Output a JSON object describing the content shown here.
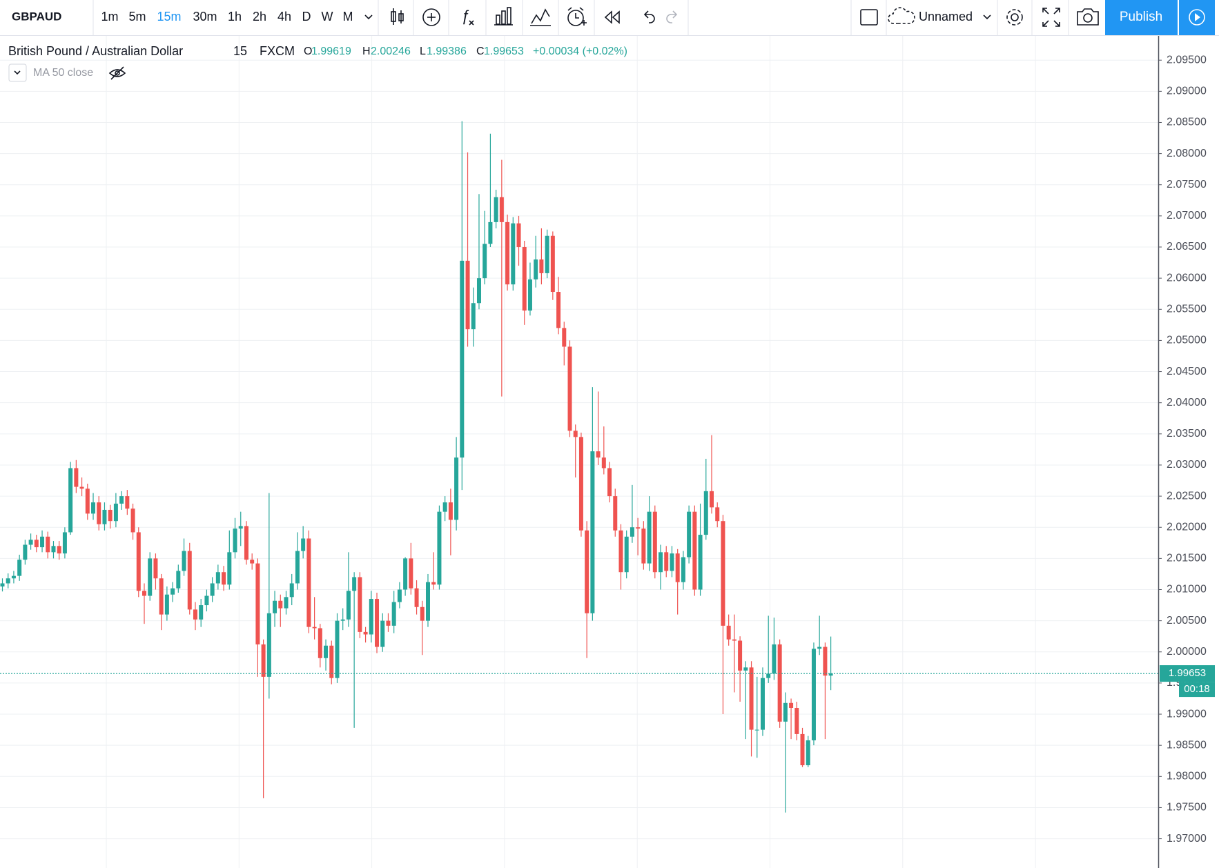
{
  "toolbar": {
    "symbol": "GBPAUD",
    "intervals": [
      "1m",
      "5m",
      "15m",
      "30m",
      "1h",
      "2h",
      "4h",
      "D",
      "W",
      "M"
    ],
    "active_interval": 2,
    "layout_name": "Unnamed",
    "publish": "Publish"
  },
  "chart_data": {
    "type": "candlestick",
    "title": "British Pound / Australian Dollar",
    "interval": "15",
    "source": "FXCM",
    "legend": {
      "open_letter": "O",
      "high_letter": "H",
      "low_letter": "L",
      "close_letter": "C",
      "change": "+0.00034 (+0.02%)"
    },
    "indicator": "MA 50 close",
    "countdown": "00:18",
    "up_color": "#26a69a",
    "down_color": "#ef5350",
    "grid": true,
    "ylim": [
      1.9653,
      2.0989
    ],
    "yticks": [
      {
        "value": 2.095,
        "label": "2.09500"
      },
      {
        "value": 2.09,
        "label": "2.09000"
      },
      {
        "value": 2.085,
        "label": "2.08500"
      },
      {
        "value": 2.08,
        "label": "2.08000"
      },
      {
        "value": 2.075,
        "label": "2.07500"
      },
      {
        "value": 2.07,
        "label": "2.07000"
      },
      {
        "value": 2.065,
        "label": "2.06500"
      },
      {
        "value": 2.06,
        "label": "2.06000"
      },
      {
        "value": 2.055,
        "label": "2.05500"
      },
      {
        "value": 2.05,
        "label": "2.05000"
      },
      {
        "value": 2.045,
        "label": "2.04500"
      },
      {
        "value": 2.04,
        "label": "2.04000"
      },
      {
        "value": 2.035,
        "label": "2.03500"
      },
      {
        "value": 2.03,
        "label": "2.03000"
      },
      {
        "value": 2.025,
        "label": "2.02500"
      },
      {
        "value": 2.02,
        "label": "2.02000"
      },
      {
        "value": 2.015,
        "label": "2.01500"
      },
      {
        "value": 2.01,
        "label": "2.01000"
      },
      {
        "value": 2.005,
        "label": "2.00500"
      },
      {
        "value": 2.0,
        "label": "2.00000"
      },
      {
        "value": 1.995,
        "label": "1.99500"
      },
      {
        "value": 1.99,
        "label": "1.99000"
      },
      {
        "value": 1.985,
        "label": "1.98500"
      },
      {
        "value": 1.98,
        "label": "1.98000"
      },
      {
        "value": 1.975,
        "label": "1.97500"
      },
      {
        "value": 1.97,
        "label": "1.97000"
      }
    ],
    "open": [
      2.0105,
      2.011,
      2.0118,
      2.0122,
      2.0148,
      2.0172,
      2.018,
      2.0168,
      2.0185,
      2.016,
      2.017,
      2.0158,
      2.0192,
      2.0295,
      2.0265,
      2.0262,
      2.0222,
      2.024,
      2.0205,
      2.0228,
      2.021,
      2.0238,
      2.025,
      2.023,
      2.0192,
      2.0098,
      2.009,
      2.015,
      2.0118,
      2.006,
      2.0092,
      2.0102,
      2.013,
      2.0162,
      2.0068,
      2.0052,
      2.0075,
      2.009,
      2.011,
      2.0128,
      2.0108,
      2.016,
      2.0198,
      2.0202,
      2.0148,
      2.0142,
      2.0012,
      1.996,
      2.0062,
      2.0082,
      2.007,
      2.0088,
      2.011,
      2.0162,
      2.0182,
      2.004,
      2.0038,
      1.999,
      2.001,
      1.9958,
      2.005,
      2.0052,
      2.0098,
      2.012,
      2.0032,
      2.0028,
      2.0085,
      2.0008,
      2.005,
      2.0042,
      2.008,
      2.01,
      2.015,
      2.0102,
      2.0072,
      2.005,
      2.0112,
      2.0108,
      2.0225,
      2.024,
      2.0212,
      2.0312,
      2.0628,
      2.0518,
      2.056,
      2.06,
      2.0655,
      2.069,
      2.073,
      2.069,
      2.059,
      2.0688,
      2.065,
      2.0548,
      2.0598,
      2.063,
      2.0608,
      2.0668,
      2.0578,
      2.052,
      2.049,
      2.0355,
      2.0345,
      2.0195,
      2.0062,
      2.0322,
      2.0312,
      2.0295,
      2.025,
      2.0195,
      2.0128,
      2.0185,
      2.02,
      2.0198,
      2.0142,
      2.0225,
      2.0128,
      2.016,
      2.013,
      2.0158,
      2.0112,
      2.0152,
      2.0225,
      2.01,
      2.0188,
      2.0258,
      2.0232,
      2.021,
      2.0042,
      2.002,
      2.0018,
      1.997,
      1.9975,
      1.9875,
      1.9875,
      1.9958,
      1.9965,
      2.0012,
      1.9888,
      1.9918,
      1.991,
      1.9868,
      1.9818,
      1.9858,
      2.0005,
      2.0008,
      1.99619
    ],
    "high": [
      2.0118,
      2.0126,
      2.013,
      2.0156,
      2.018,
      2.019,
      2.0188,
      2.0195,
      2.0193,
      2.0178,
      2.0178,
      2.02,
      2.0305,
      2.0308,
      2.028,
      2.027,
      2.0255,
      2.025,
      2.024,
      2.0236,
      2.0255,
      2.0258,
      2.026,
      2.0238,
      2.02,
      2.011,
      2.016,
      2.0158,
      2.0125,
      2.0105,
      2.0112,
      2.014,
      2.0182,
      2.0175,
      2.008,
      2.0085,
      2.01,
      2.012,
      2.014,
      2.0138,
      2.0195,
      2.0215,
      2.0225,
      2.021,
      2.0158,
      2.015,
      2.002,
      2.0255,
      2.0098,
      2.0092,
      2.0098,
      2.0125,
      2.0192,
      2.0202,
      2.0195,
      2.0088,
      2.0045,
      2.002,
      2.0018,
      2.0062,
      2.007,
      2.016,
      2.0128,
      2.0128,
      2.004,
      2.0098,
      2.0095,
      2.0062,
      2.0062,
      2.0098,
      2.0112,
      2.0152,
      2.0175,
      2.0115,
      2.0082,
      2.0125,
      2.016,
      2.0235,
      2.025,
      2.0262,
      2.0345,
      2.0852,
      2.0802,
      2.0585,
      2.0735,
      2.0708,
      2.0832,
      2.0742,
      2.079,
      2.0702,
      2.0698,
      2.07,
      2.066,
      2.0625,
      2.0668,
      2.068,
      2.0678,
      2.0675,
      2.0602,
      2.053,
      2.05,
      2.0365,
      2.0352,
      2.021,
      2.0425,
      2.0418,
      2.0362,
      2.0305,
      2.0262,
      2.0205,
      2.0195,
      2.0268,
      2.0215,
      2.021,
      2.025,
      2.0235,
      2.0172,
      2.017,
      2.017,
      2.0165,
      2.0162,
      2.0235,
      2.0235,
      2.0238,
      2.031,
      2.0348,
      2.024,
      2.022,
      2.006,
      2.006,
      2.0025,
      1.9985,
      1.9985,
      1.996,
      1.9975,
      2.0058,
      2.0055,
      2.002,
      1.9935,
      1.9925,
      1.992,
      1.9878,
      1.9865,
      2.0015,
      2.0058,
      2.0015,
      2.00246
    ],
    "low": [
      2.0097,
      2.0102,
      2.011,
      2.0114,
      2.014,
      2.0164,
      2.016,
      2.016,
      2.015,
      2.015,
      2.0148,
      2.015,
      2.0188,
      2.0255,
      2.025,
      2.0212,
      2.0212,
      2.0195,
      2.0195,
      2.0198,
      2.02,
      2.0228,
      2.022,
      2.018,
      2.0088,
      2.0045,
      2.0082,
      2.01,
      2.0035,
      2.005,
      2.008,
      2.0095,
      2.0122,
      2.006,
      2.0035,
      2.004,
      2.0065,
      2.008,
      2.01,
      2.0098,
      2.01,
      2.015,
      2.017,
      2.014,
      2.0132,
      1.996,
      1.9765,
      1.9925,
      2.004,
      2.004,
      2.006,
      2.0075,
      2.01,
      2.015,
      2.003,
      2.002,
      1.9975,
      1.997,
      1.9948,
      1.995,
      2.0035,
      2.004,
      1.9878,
      2.0022,
      2.0015,
      2.0015,
      1.9998,
      2.0,
      2.0032,
      2.003,
      2.007,
      2.009,
      2.0092,
      2.006,
      1.9995,
      2.004,
      2.01,
      2.01,
      2.021,
      2.0155,
      2.0195,
      2.026,
      2.049,
      2.049,
      2.055,
      2.059,
      2.065,
      2.068,
      2.041,
      2.058,
      2.058,
      2.062,
      2.0525,
      2.054,
      2.0585,
      2.059,
      2.06,
      2.0565,
      2.051,
      2.046,
      2.0345,
      2.028,
      2.0185,
      1.999,
      2.005,
      2.03,
      2.0285,
      2.024,
      2.0185,
      2.01,
      2.0118,
      2.0175,
      2.0155,
      2.0132,
      2.013,
      2.0118,
      2.01,
      2.012,
      2.012,
      2.006,
      2.01,
      2.0142,
      2.009,
      2.009,
      2.018,
      2.0222,
      2.02,
      1.99,
      2.001,
      1.9935,
      1.992,
      1.986,
      1.9832,
      1.983,
      1.9865,
      1.995,
      1.9955,
      1.9878,
      1.9742,
      1.986,
      1.9858,
      1.9815,
      1.9815,
      1.985,
      1.9995,
      1.986,
      1.99386
    ],
    "close": [
      2.011,
      2.0118,
      2.0122,
      2.0148,
      2.0172,
      2.018,
      2.0168,
      2.0185,
      2.016,
      2.017,
      2.0158,
      2.0192,
      2.0295,
      2.0265,
      2.0262,
      2.0222,
      2.024,
      2.0205,
      2.0228,
      2.021,
      2.0238,
      2.025,
      2.023,
      2.0192,
      2.0098,
      2.009,
      2.015,
      2.0118,
      2.006,
      2.0092,
      2.0102,
      2.013,
      2.0162,
      2.0068,
      2.0052,
      2.0075,
      2.009,
      2.011,
      2.0128,
      2.0108,
      2.016,
      2.0198,
      2.0202,
      2.0148,
      2.0142,
      2.0012,
      1.996,
      2.0062,
      2.0082,
      2.007,
      2.0088,
      2.011,
      2.0162,
      2.0182,
      2.004,
      2.0038,
      1.999,
      2.001,
      1.9958,
      2.005,
      2.0052,
      2.0098,
      2.012,
      2.0032,
      2.0028,
      2.0085,
      2.0008,
      2.005,
      2.0042,
      2.008,
      2.01,
      2.015,
      2.0102,
      2.0072,
      2.005,
      2.0112,
      2.0108,
      2.0225,
      2.024,
      2.0212,
      2.0312,
      2.0628,
      2.0518,
      2.056,
      2.06,
      2.0655,
      2.069,
      2.073,
      2.069,
      2.059,
      2.0688,
      2.065,
      2.0548,
      2.0598,
      2.063,
      2.0608,
      2.0668,
      2.0578,
      2.052,
      2.049,
      2.0355,
      2.0345,
      2.0195,
      2.0062,
      2.0322,
      2.0312,
      2.0295,
      2.025,
      2.0195,
      2.0128,
      2.0185,
      2.02,
      2.0198,
      2.0142,
      2.0225,
      2.0128,
      2.016,
      2.013,
      2.0158,
      2.0112,
      2.0152,
      2.0225,
      2.01,
      2.0188,
      2.0258,
      2.0232,
      2.021,
      2.0042,
      2.002,
      2.0018,
      1.997,
      1.9975,
      1.9875,
      1.9875,
      1.9958,
      1.9965,
      2.0012,
      1.9888,
      1.9918,
      1.991,
      1.9868,
      1.9818,
      1.9858,
      2.0005,
      2.0008,
      1.99619,
      1.99653
    ]
  }
}
